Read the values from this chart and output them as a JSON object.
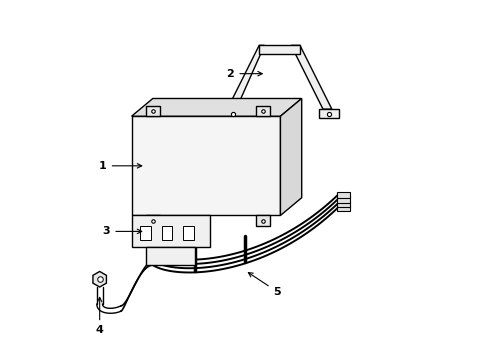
{
  "background_color": "#ffffff",
  "line_color": "#000000",
  "label_color": "#000000",
  "figsize": [
    4.9,
    3.6
  ],
  "dpi": 100
}
